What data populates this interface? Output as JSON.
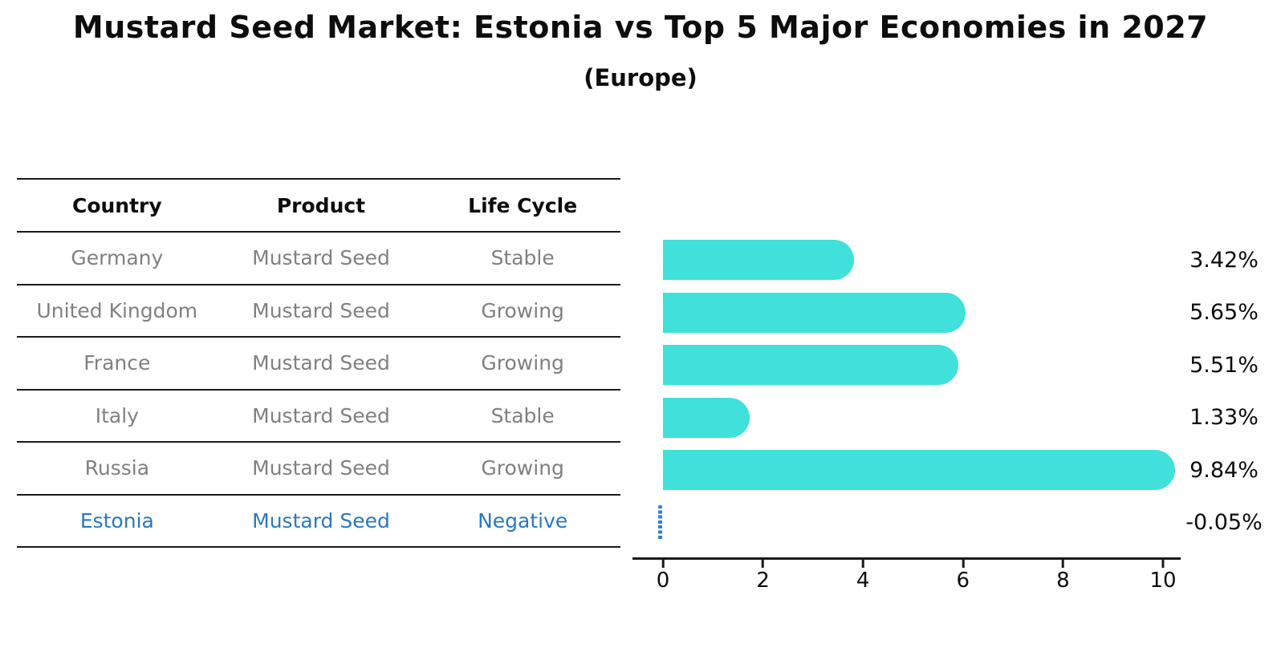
{
  "title": "Mustard Seed Market: Estonia vs Top 5 Major Economies in 2027",
  "subtitle": "(Europe)",
  "table": {
    "headers": [
      "Country",
      "Product",
      "Life Cycle"
    ],
    "rows": [
      {
        "country": "Germany",
        "product": "Mustard Seed",
        "life_cycle": "Stable",
        "highlight": false
      },
      {
        "country": "United Kingdom",
        "product": "Mustard Seed",
        "life_cycle": "Growing",
        "highlight": false
      },
      {
        "country": "France",
        "product": "Mustard Seed",
        "life_cycle": "Growing",
        "highlight": false
      },
      {
        "country": "Italy",
        "product": "Mustard Seed",
        "life_cycle": "Stable",
        "highlight": false
      },
      {
        "country": "Russia",
        "product": "Mustard Seed",
        "life_cycle": "Growing",
        "highlight": false
      },
      {
        "country": "Estonia",
        "product": "Mustard Seed",
        "life_cycle": "Negative",
        "highlight": true
      }
    ]
  },
  "chart_data": {
    "type": "bar",
    "orientation": "horizontal",
    "categories": [
      "Germany",
      "United Kingdom",
      "France",
      "Italy",
      "Russia",
      "Estonia"
    ],
    "values": [
      3.42,
      5.65,
      5.51,
      1.33,
      9.84,
      -0.05
    ],
    "value_labels": [
      "3.42%",
      "5.65%",
      "5.51%",
      "1.33%",
      "9.84%",
      "-0.05%"
    ],
    "x_ticks": [
      "0",
      "2",
      "4",
      "6",
      "8",
      "10"
    ],
    "xlim": [
      -0.6,
      10.4
    ],
    "grid": false,
    "legend": "none",
    "bar_color": "#40e1db",
    "highlight_color": "#2c80db",
    "text_color": "#0d0d0d",
    "muted_text_color": "#808080"
  }
}
